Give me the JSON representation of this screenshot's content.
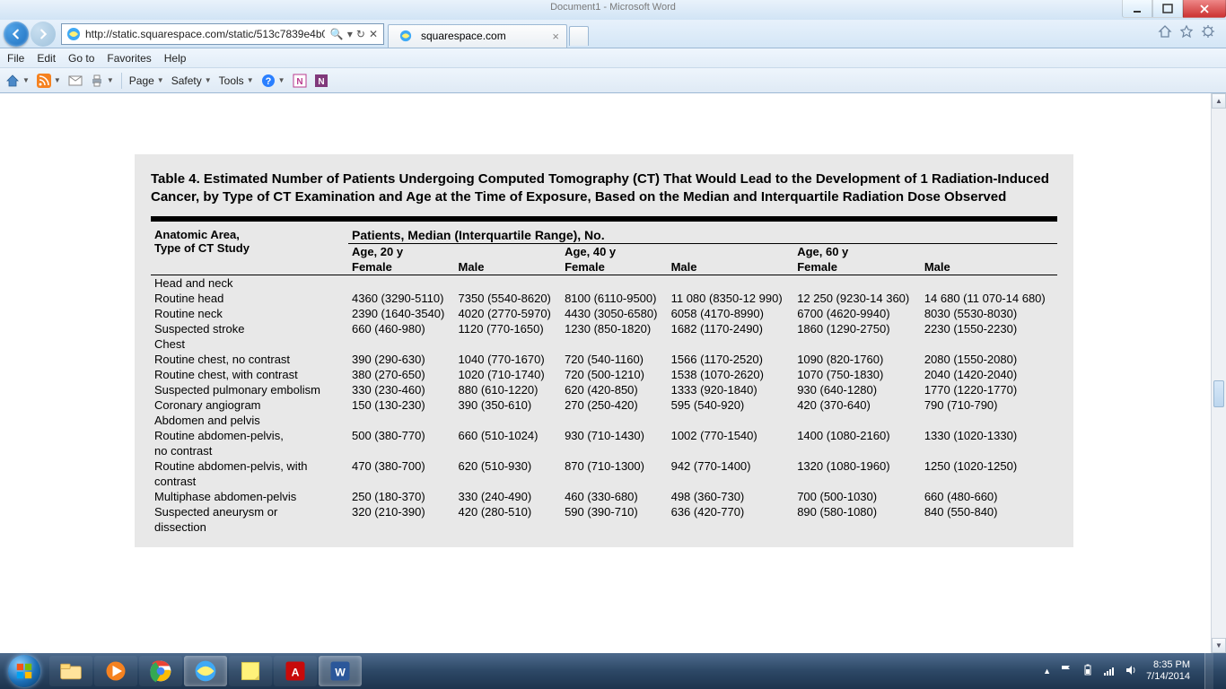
{
  "bg_app_title": "Document1 - Microsoft Word",
  "address_bar": {
    "url": "http://static.squarespace.com/static/513c7839e4b0"
  },
  "addr_controls": {
    "search_glyph": "🔍",
    "dropdown_glyph": "▾",
    "refresh_glyph": "↻",
    "stop_glyph": "✕"
  },
  "tab": {
    "title": "squarespace.com"
  },
  "menus": {
    "file": "File",
    "edit": "Edit",
    "goto": "Go to",
    "favorites": "Favorites",
    "help": "Help"
  },
  "toolbar": {
    "page": "Page",
    "safety": "Safety",
    "tools": "Tools"
  },
  "table": {
    "title": "Table 4. Estimated Number of Patients Undergoing Computed Tomography (CT) That Would Lead to the Development of 1 Radiation-Induced Cancer, by Type of CT Examination and Age at the Time of Exposure, Based on the Median and Interquartile Radiation Dose Observed",
    "super_header": "Patients, Median (Interquartile Range), No.",
    "left_header_l1": "Anatomic Area,",
    "left_header_l2": "Type of CT Study",
    "age_headers": [
      "Age, 20 y",
      "Age, 40 y",
      "Age, 60 y"
    ],
    "sex_headers": [
      "Female",
      "Male"
    ],
    "sections": [
      {
        "name": "Head and neck",
        "rows": [
          {
            "label": "Routine head",
            "v": [
              "4360 (3290-5110)",
              "7350 (5540-8620)",
              "8100 (6110-9500)",
              "11 080 (8350-12 990)",
              "12 250 (9230-14 360)",
              "14 680 (11 070-14 680)"
            ]
          },
          {
            "label": "Routine neck",
            "v": [
              "2390 (1640-3540)",
              "4020 (2770-5970)",
              "4430 (3050-6580)",
              "6058 (4170-8990)",
              "6700 (4620-9940)",
              "8030 (5530-8030)"
            ]
          },
          {
            "label": "Suspected stroke",
            "v": [
              "660 (460-980)",
              "1120 (770-1650)",
              "1230 (850-1820)",
              "1682 (1170-2490)",
              "1860 (1290-2750)",
              "2230 (1550-2230)"
            ]
          }
        ]
      },
      {
        "name": "Chest",
        "rows": [
          {
            "label": "Routine chest, no contrast",
            "v": [
              "390 (290-630)",
              "1040 (770-1670)",
              "720 (540-1160)",
              "1566 (1170-2520)",
              "1090 (820-1760)",
              "2080 (1550-2080)"
            ]
          },
          {
            "label": "Routine chest, with contrast",
            "v": [
              "380 (270-650)",
              "1020 (710-1740)",
              "720 (500-1210)",
              "1538 (1070-2620)",
              "1070 (750-1830)",
              "2040 (1420-2040)"
            ]
          },
          {
            "label": "Suspected pulmonary embolism",
            "v": [
              "330 (230-460)",
              "880 (610-1220)",
              "620 (420-850)",
              "1333 (920-1840)",
              "930 (640-1280)",
              "1770 (1220-1770)"
            ]
          },
          {
            "label": "Coronary angiogram",
            "v": [
              "150 (130-230)",
              "390 (350-610)",
              "270 (250-420)",
              "595 (540-920)",
              "420 (370-640)",
              "790 (710-790)"
            ]
          }
        ]
      },
      {
        "name": "Abdomen and pelvis",
        "rows": [
          {
            "label": "Routine abdomen-pelvis,",
            "label2": "no contrast",
            "v": [
              "500 (380-770)",
              "660 (510-1024)",
              "930 (710-1430)",
              "1002 (770-1540)",
              "1400 (1080-2160)",
              "1330 (1020-1330)"
            ]
          },
          {
            "label": "Routine abdomen-pelvis, with",
            "label2": "contrast",
            "v": [
              "470 (380-700)",
              "620 (510-930)",
              "870 (710-1300)",
              "942 (770-1400)",
              "1320 (1080-1960)",
              "1250 (1020-1250)"
            ]
          },
          {
            "label": "Multiphase abdomen-pelvis",
            "v": [
              "250 (180-370)",
              "330 (240-490)",
              "460 (330-680)",
              "498 (360-730)",
              "700 (500-1030)",
              "660 (480-660)"
            ]
          },
          {
            "label": "Suspected aneurysm or",
            "label2": "dissection",
            "v": [
              "320 (210-390)",
              "420 (280-510)",
              "590 (390-710)",
              "636 (420-770)",
              "890 (580-1080)",
              "840 (550-840)"
            ]
          }
        ]
      }
    ]
  },
  "tray": {
    "time": "8:35 PM",
    "date": "7/14/2014"
  }
}
